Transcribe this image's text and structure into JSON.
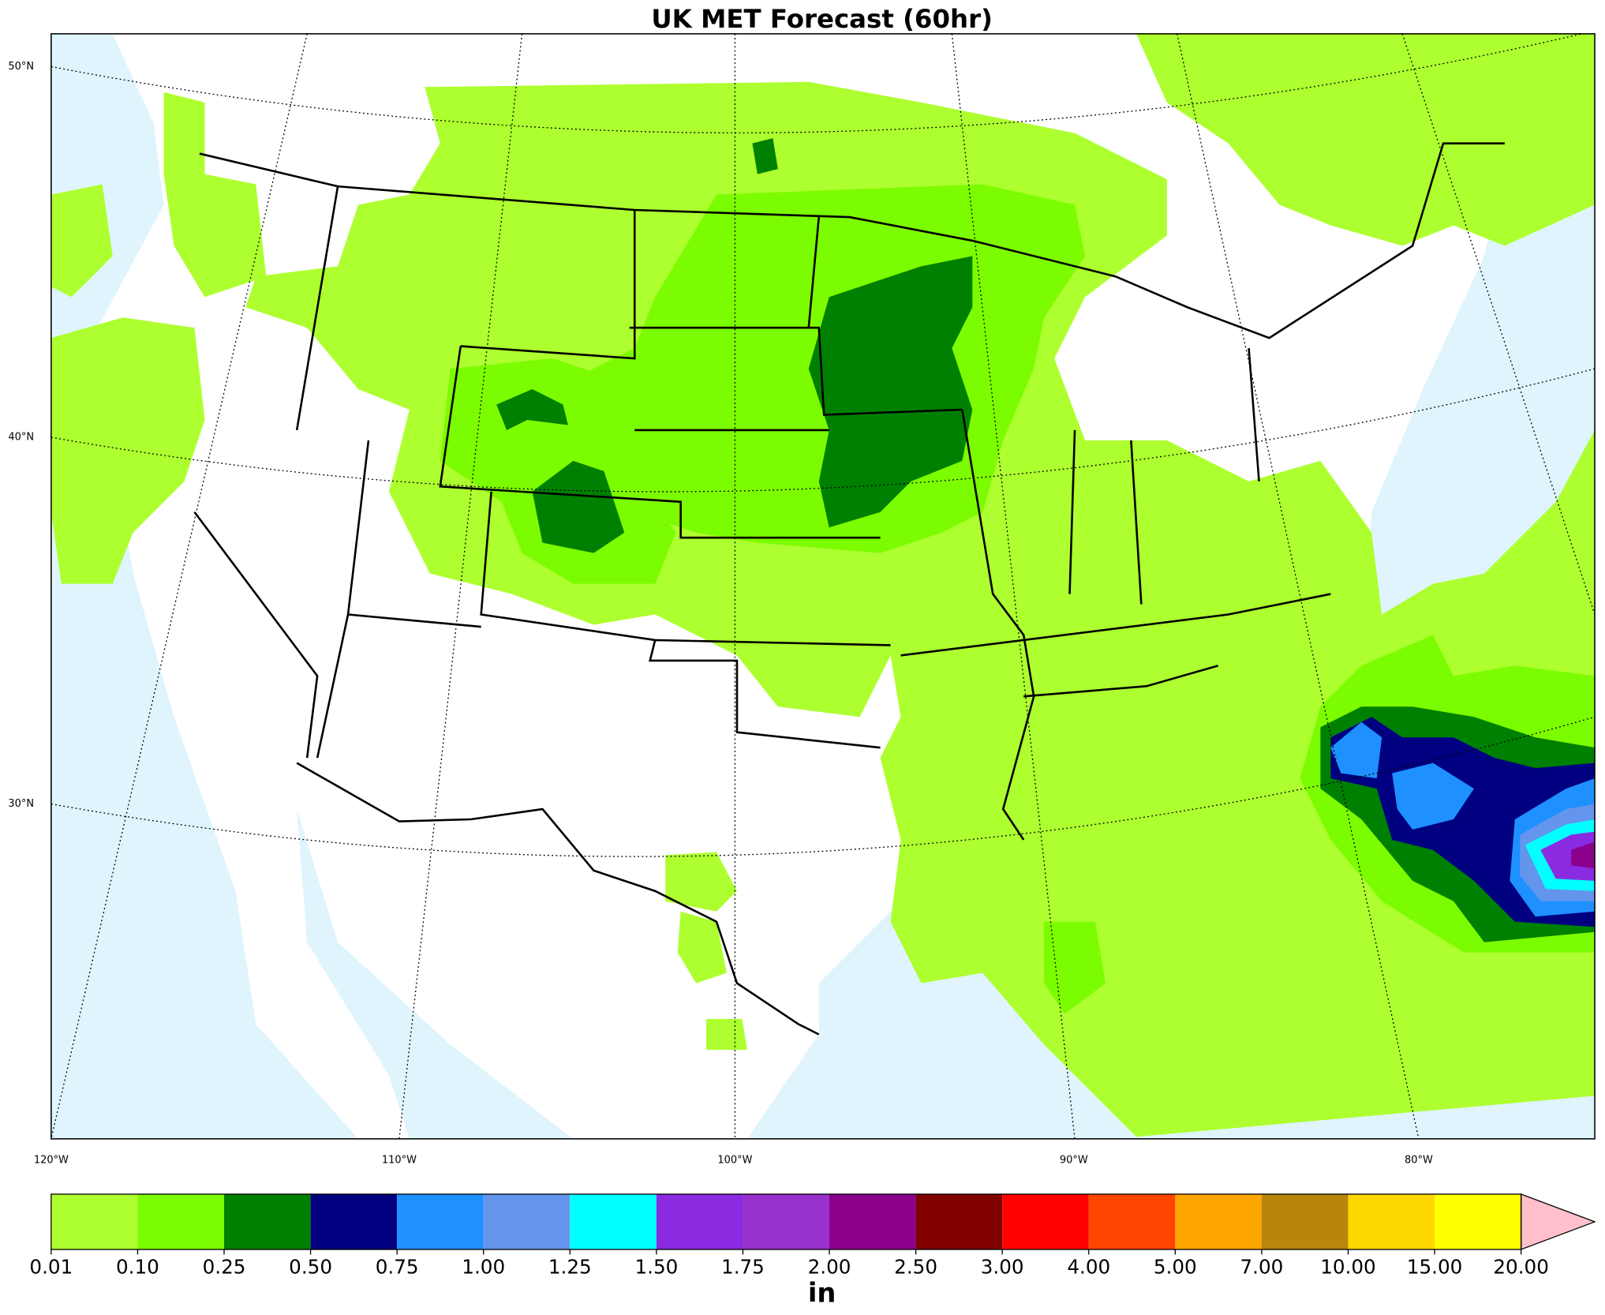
{
  "title": "UK MET Forecast (60hr)",
  "map": {
    "lat_labels": [
      "50°N",
      "40°N",
      "30°N"
    ],
    "lon_labels": [
      "120°W",
      "110°W",
      "100°W",
      "90°W",
      "80°W"
    ]
  },
  "colorbar": {
    "levels": [
      0.01,
      {
        "value": 0.1,
        "label": "0.10"
      },
      0.25,
      {
        "value": 0.5,
        "label": "0.50"
      },
      0.75,
      {
        "value": 1,
        "label": "1.00"
      },
      1.25,
      {
        "value": 1.5,
        "label": "1.50"
      },
      1.75,
      {
        "value": 2,
        "label": "2.00"
      },
      {
        "value": 2.5,
        "label": "2.50"
      },
      {
        "value": 3,
        "label": "3.00"
      },
      {
        "value": 4,
        "label": "4.00"
      },
      {
        "value": 5,
        "label": "5.00"
      },
      {
        "value": 7,
        "label": "7.00"
      },
      {
        "value": 10,
        "label": "10.00"
      },
      {
        "value": 15,
        "label": "15.00"
      },
      {
        "value": 20,
        "label": "20.00"
      }
    ],
    "colors": [
      "#adff2f",
      "#7cfc00",
      "#008000",
      "#000080",
      "#1e90ff",
      "#6495ed",
      "#00ffff",
      "#8a2be2",
      "#9932cc",
      "#8b008b",
      "#800000",
      "#ff0000",
      "#ff4500",
      "#ffa500",
      "#b8860b",
      "#ffd700",
      "#ffff00"
    ],
    "extend_color": "#ffc0cb",
    "unit": "in"
  }
}
